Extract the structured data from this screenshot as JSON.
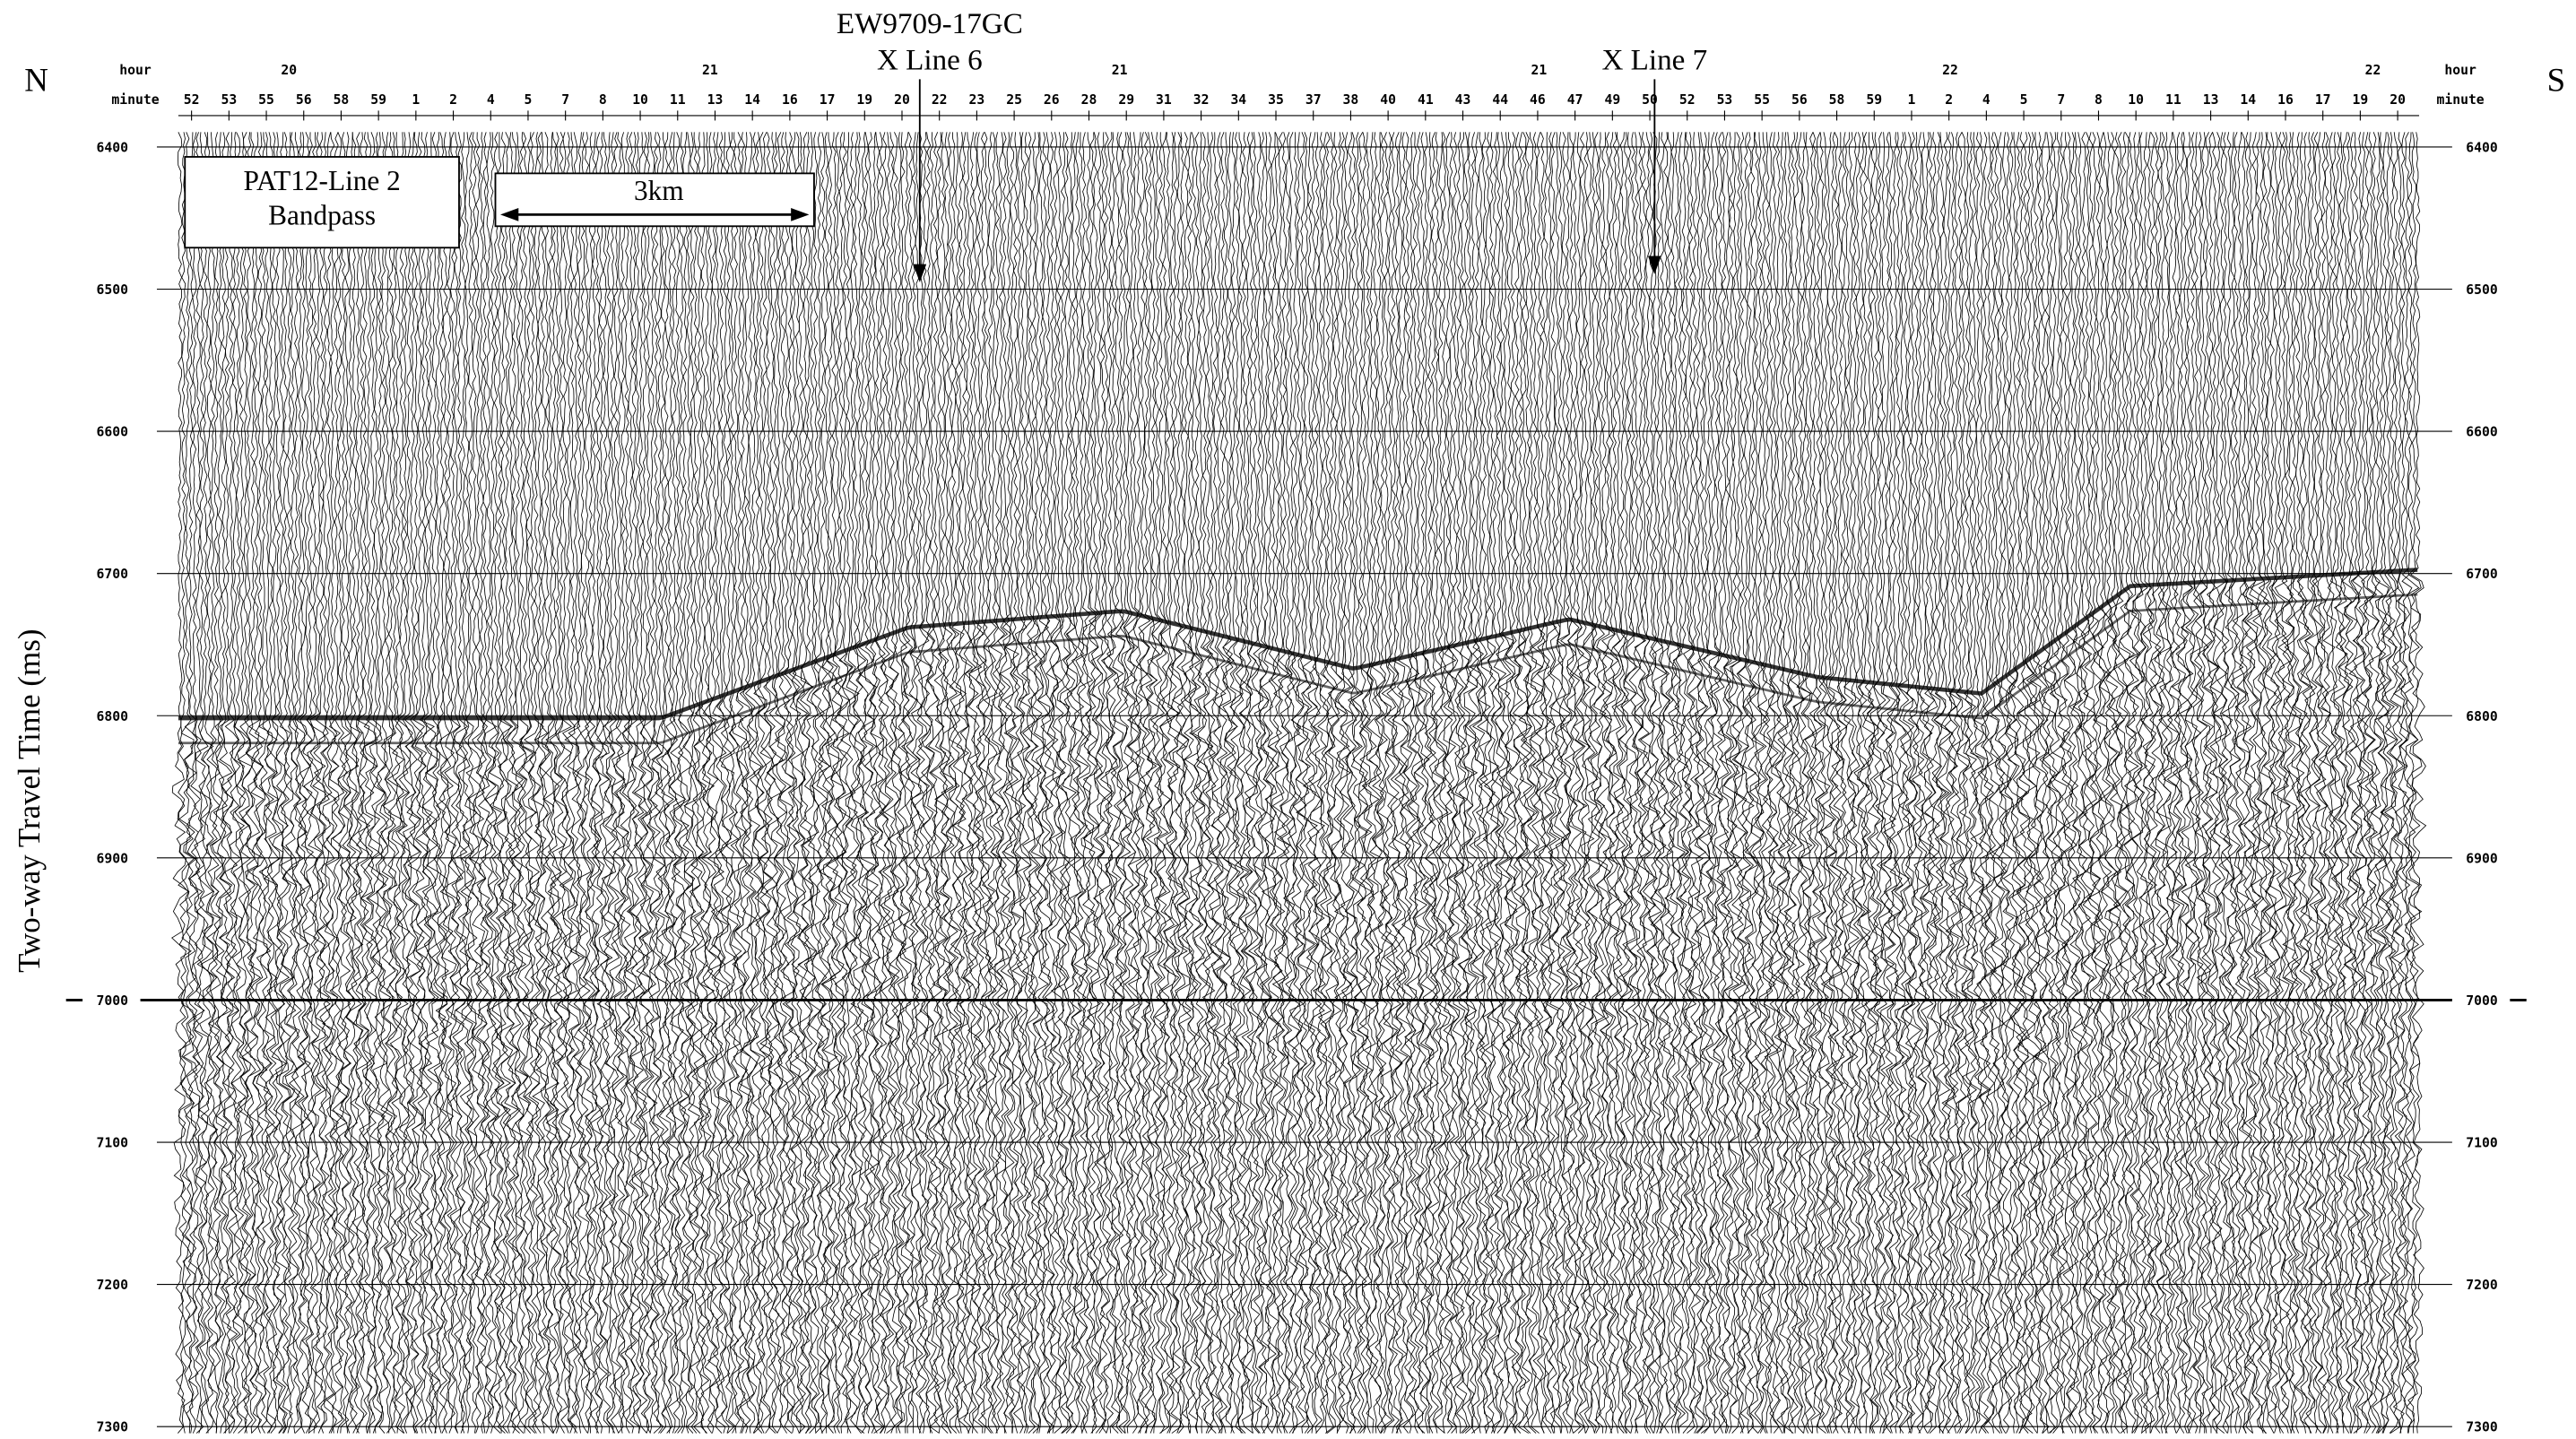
{
  "labels": {
    "north": "N",
    "south": "S",
    "y_axis": "Two-way Travel Time (ms)"
  },
  "annotations": {
    "core": "EW9709-17GC",
    "x_line_6": "X Line 6",
    "x_line_7": "X Line 7",
    "line_name": "PAT12-Line 2",
    "filter": "Bandpass",
    "scale_bar": "3km"
  },
  "header": {
    "hour_label": "hour",
    "minute_label": "minute",
    "hours": [
      20,
      21,
      21,
      21,
      22,
      22
    ],
    "minutes": [
      52,
      53,
      55,
      56,
      58,
      59,
      1,
      2,
      4,
      5,
      7,
      8,
      10,
      11,
      13,
      14,
      16,
      17,
      19,
      20,
      22,
      23,
      25,
      26,
      28,
      29,
      31,
      32,
      34,
      35,
      37,
      38,
      40,
      41,
      43,
      44,
      46,
      47,
      49,
      50,
      52,
      53,
      55,
      56,
      58,
      59,
      1,
      2,
      4,
      5,
      7,
      8,
      10,
      11,
      13,
      14,
      16,
      17,
      19,
      20
    ]
  },
  "time_axis": {
    "ticks": [
      6400,
      6500,
      6600,
      6700,
      6800,
      6900,
      7000,
      7100,
      7200,
      7300
    ]
  }
}
